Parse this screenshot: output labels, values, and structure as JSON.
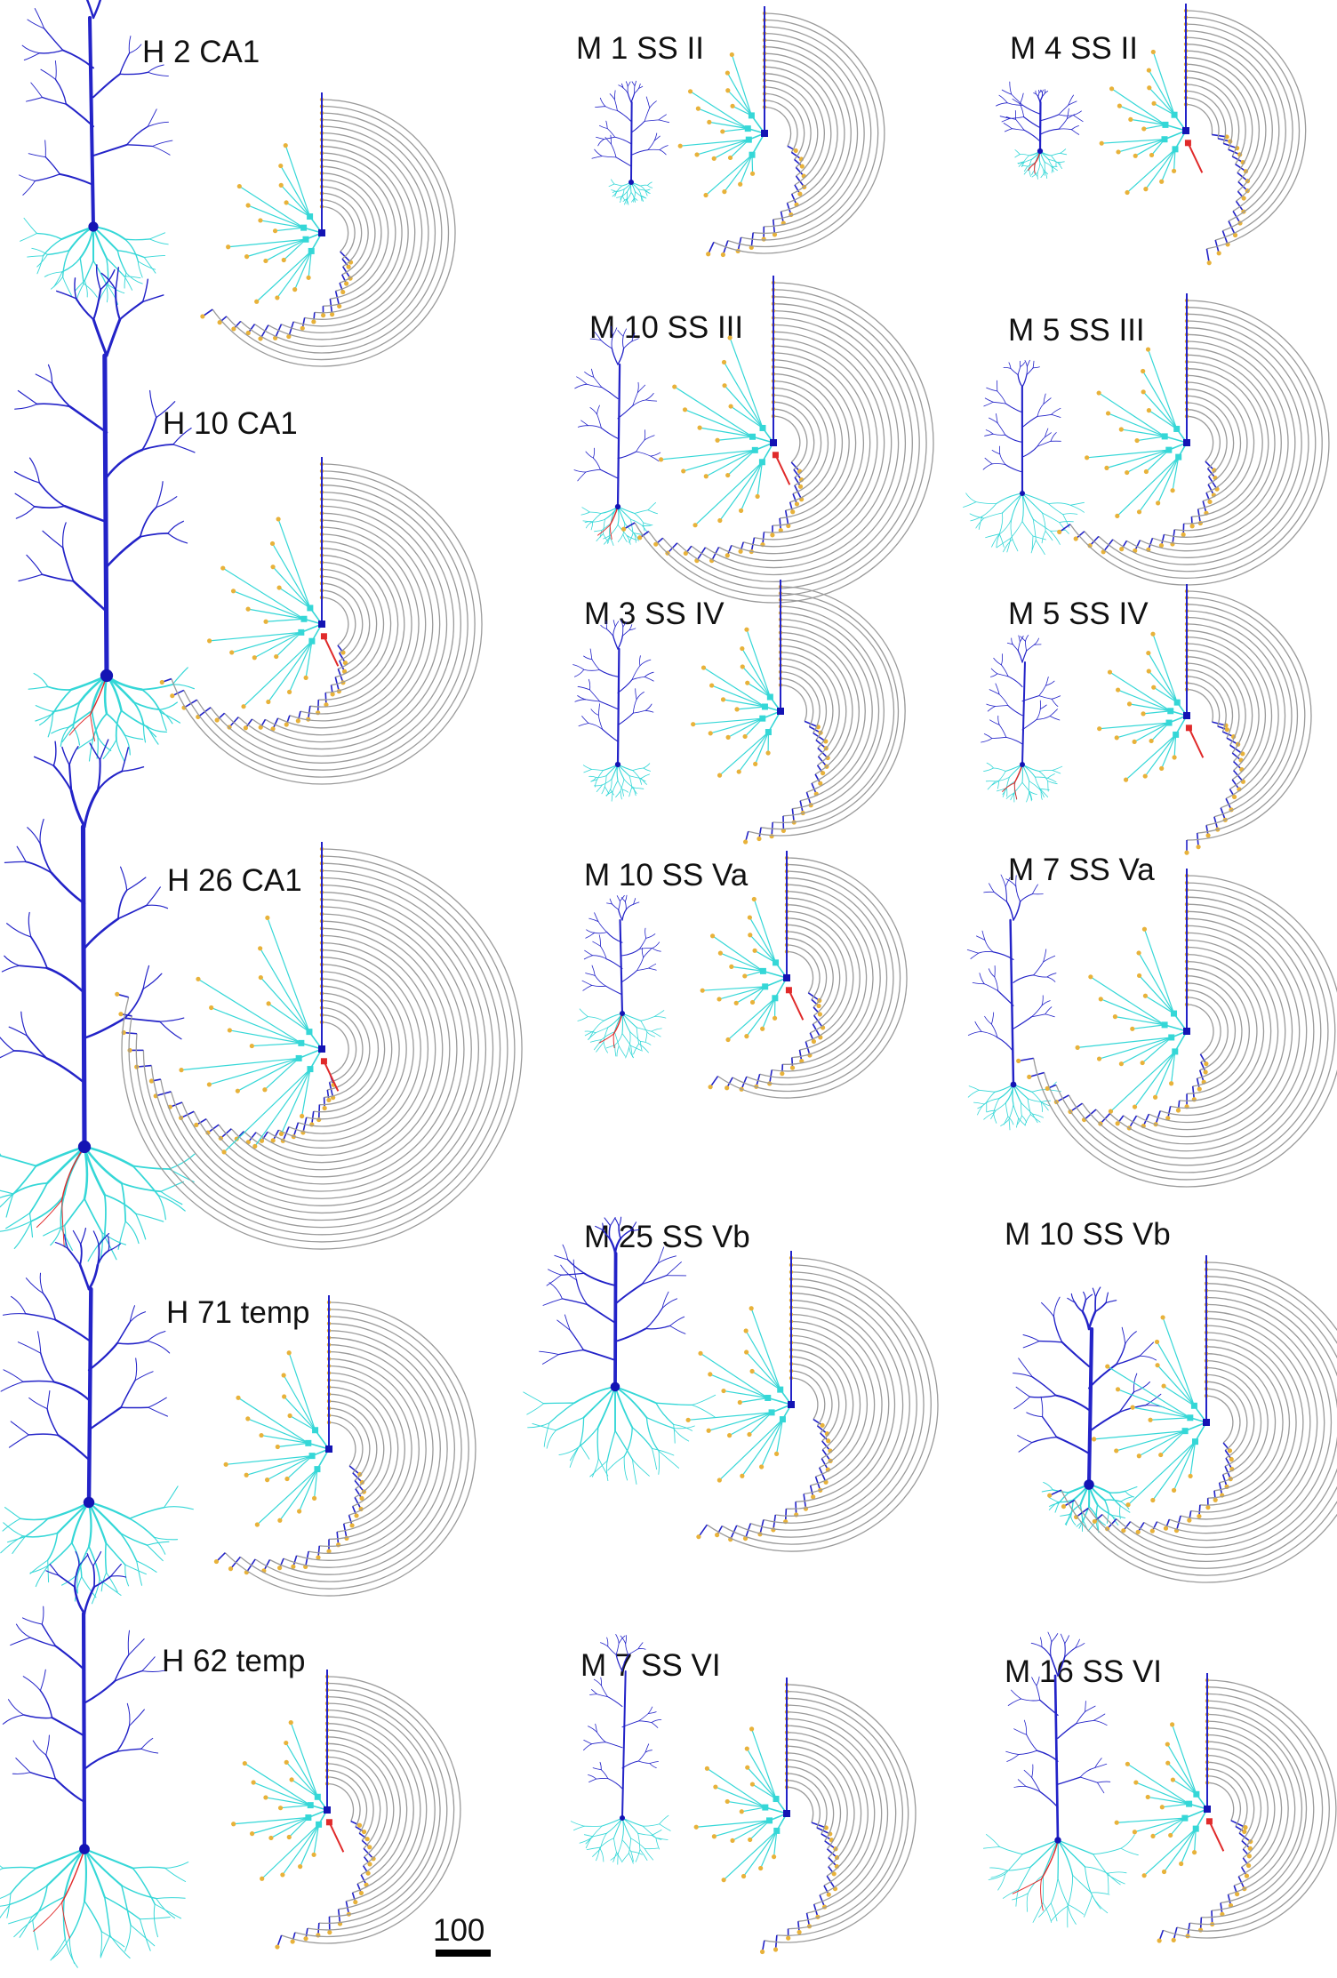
{
  "colors": {
    "apical": "#2323c8",
    "basal": "#35d7d7",
    "axon": "#e02a2a",
    "soma": "#1414b4",
    "node": "#e8b23a",
    "arc": "#9a9a9a",
    "text": "#111111"
  },
  "panels": [
    {
      "label": "H 2 CA1",
      "group": "human",
      "region": "CA1"
    },
    {
      "label": "H 10 CA1",
      "group": "human",
      "region": "CA1"
    },
    {
      "label": "H 26 CA1",
      "group": "human",
      "region": "CA1"
    },
    {
      "label": "H 71 temp",
      "group": "human",
      "region": "temp"
    },
    {
      "label": "H 62 temp",
      "group": "human",
      "region": "temp"
    },
    {
      "label": "M 1 SS II",
      "group": "mouse",
      "region": "SS II"
    },
    {
      "label": "M 10 SS III",
      "group": "mouse",
      "region": "SS III"
    },
    {
      "label": "M 3 SS IV",
      "group": "mouse",
      "region": "SS IV"
    },
    {
      "label": "M 10 SS Va",
      "group": "mouse",
      "region": "SS Va"
    },
    {
      "label": "M 25 SS Vb",
      "group": "mouse",
      "region": "SS Vb"
    },
    {
      "label": "M 7 SS VI",
      "group": "mouse",
      "region": "SS VI"
    },
    {
      "label": "M 4 SS II",
      "group": "mouse",
      "region": "SS II"
    },
    {
      "label": "M 5 SS III",
      "group": "mouse",
      "region": "SS III"
    },
    {
      "label": "M 5 SS IV",
      "group": "mouse",
      "region": "SS IV"
    },
    {
      "label": "M 7 SS Va",
      "group": "mouse",
      "region": "SS Va"
    },
    {
      "label": "M 10 SS Vb",
      "group": "mouse",
      "region": "SS Vb"
    },
    {
      "label": "M 16 SS VI",
      "group": "mouse",
      "region": "SS VI"
    }
  ],
  "scale_bar": {
    "label": "100"
  }
}
